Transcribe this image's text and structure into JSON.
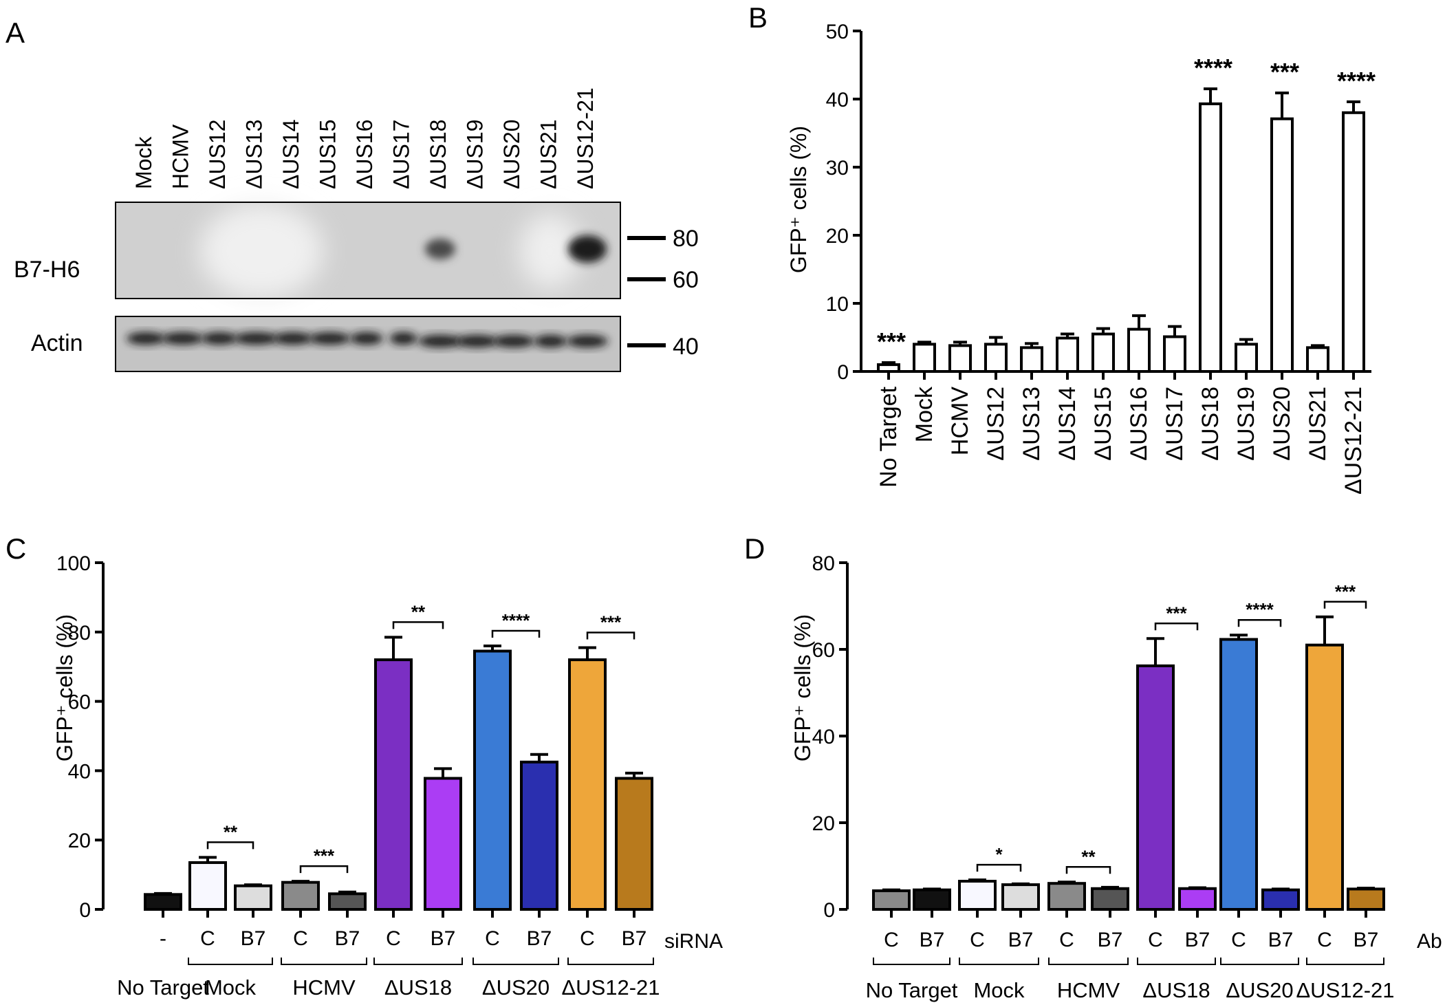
{
  "panels": {
    "A": {
      "label": "A",
      "lanes": [
        "Mock",
        "HCMV",
        "ΔUS12",
        "ΔUS13",
        "ΔUS14",
        "ΔUS15",
        "ΔUS16",
        "ΔUS17",
        "ΔUS18",
        "ΔUS19",
        "ΔUS20",
        "ΔUS21",
        "ΔUS12-21"
      ],
      "blots": [
        {
          "name": "B7-H6",
          "markers": [
            "80",
            "60"
          ]
        },
        {
          "name": "Actin",
          "markers": [
            "40"
          ]
        }
      ],
      "b7h6_band_lanes": [
        "ΔUS18",
        "ΔUS12-21"
      ]
    },
    "B": {
      "label": "B"
    },
    "C": {
      "label": "C",
      "treatment_label": "siRNA"
    },
    "D": {
      "label": "D",
      "treatment_label": "Ab"
    }
  },
  "chart_data": [
    {
      "panel": "B",
      "type": "bar",
      "ylabel": "GFP⁺ cells (%)",
      "ylim": [
        0,
        50
      ],
      "yticks": [
        0,
        10,
        20,
        30,
        40,
        50
      ],
      "categories": [
        "No Target",
        "Mock",
        "HCMV",
        "ΔUS12",
        "ΔUS13",
        "ΔUS14",
        "ΔUS15",
        "ΔUS16",
        "ΔUS17",
        "ΔUS18",
        "ΔUS19",
        "ΔUS20",
        "ΔUS21",
        "ΔUS12-21"
      ],
      "values": [
        1.0,
        4.0,
        3.8,
        4.0,
        3.5,
        4.9,
        5.5,
        6.2,
        5.1,
        39.3,
        4.0,
        37.1,
        3.5,
        38.0
      ],
      "errors": [
        0.3,
        0.3,
        0.5,
        1.0,
        0.6,
        0.6,
        0.8,
        2.0,
        1.5,
        2.2,
        0.7,
        3.8,
        0.3,
        1.6
      ],
      "fill": "#ffffff",
      "significance": [
        {
          "index": 0,
          "label": "***"
        },
        {
          "index": 9,
          "label": "****"
        },
        {
          "index": 11,
          "label": "***"
        },
        {
          "index": 13,
          "label": "****"
        }
      ]
    },
    {
      "panel": "C",
      "type": "bar",
      "ylabel": "GFP⁺ cells (%)",
      "ylim": [
        0,
        100
      ],
      "yticks": [
        0,
        20,
        40,
        60,
        80,
        100
      ],
      "bar_labels": [
        "-",
        "C",
        "B7",
        "C",
        "B7",
        "C",
        "B7",
        "C",
        "B7",
        "C",
        "B7"
      ],
      "values": [
        4.3,
        13.5,
        6.8,
        7.8,
        4.5,
        72.0,
        37.8,
        74.5,
        42.5,
        72.0,
        37.8
      ],
      "errors": [
        0.3,
        1.5,
        0.3,
        0.3,
        0.5,
        6.5,
        2.8,
        1.5,
        2.2,
        3.5,
        1.5
      ],
      "colors": [
        "#111111",
        "#f8f8ff",
        "#dddddd",
        "#8a8a8a",
        "#555555",
        "#7b2fc3",
        "#ab3df4",
        "#3a7bd5",
        "#2a2faf",
        "#eea63a",
        "#b87a1d"
      ],
      "groups": [
        {
          "name": "No Target",
          "bars": [
            0
          ]
        },
        {
          "name": "Mock",
          "bars": [
            1,
            2
          ]
        },
        {
          "name": "HCMV",
          "bars": [
            3,
            4
          ]
        },
        {
          "name": "ΔUS18",
          "bars": [
            5,
            6
          ]
        },
        {
          "name": "ΔUS20",
          "bars": [
            7,
            8
          ]
        },
        {
          "name": "ΔUS12-21",
          "bars": [
            9,
            10
          ]
        }
      ],
      "significance": [
        {
          "bars": [
            1,
            2
          ],
          "label": "**"
        },
        {
          "bars": [
            3,
            4
          ],
          "label": "***"
        },
        {
          "bars": [
            5,
            6
          ],
          "label": "**"
        },
        {
          "bars": [
            7,
            8
          ],
          "label": "****"
        },
        {
          "bars": [
            9,
            10
          ],
          "label": "***"
        }
      ]
    },
    {
      "panel": "D",
      "type": "bar",
      "ylabel": "GFP⁺ cells (%)",
      "ylim": [
        0,
        80
      ],
      "yticks": [
        0,
        20,
        40,
        60,
        80
      ],
      "bar_labels": [
        "C",
        "B7",
        "C",
        "B7",
        "C",
        "B7",
        "C",
        "B7",
        "C",
        "B7",
        "C",
        "B7"
      ],
      "values": [
        4.3,
        4.5,
        6.5,
        5.7,
        6.0,
        4.8,
        56.2,
        4.8,
        62.3,
        4.5,
        61.0,
        4.7
      ],
      "errors": [
        0.2,
        0.2,
        0.3,
        0.2,
        0.3,
        0.3,
        6.3,
        0.2,
        1.0,
        0.2,
        6.5,
        0.2
      ],
      "colors": [
        "#8a8a8a",
        "#111111",
        "#f8f8ff",
        "#dddddd",
        "#8a8a8a",
        "#555555",
        "#7b2fc3",
        "#ab3df4",
        "#3a7bd5",
        "#2a2faf",
        "#eea63a",
        "#b87a1d"
      ],
      "groups": [
        {
          "name": "No Target",
          "bars": [
            0,
            1
          ]
        },
        {
          "name": "Mock",
          "bars": [
            2,
            3
          ]
        },
        {
          "name": "HCMV",
          "bars": [
            4,
            5
          ]
        },
        {
          "name": "ΔUS18",
          "bars": [
            6,
            7
          ]
        },
        {
          "name": "ΔUS20",
          "bars": [
            8,
            9
          ]
        },
        {
          "name": "ΔUS12-21",
          "bars": [
            10,
            11
          ]
        }
      ],
      "significance": [
        {
          "bars": [
            2,
            3
          ],
          "label": "*"
        },
        {
          "bars": [
            4,
            5
          ],
          "label": "**"
        },
        {
          "bars": [
            6,
            7
          ],
          "label": "***"
        },
        {
          "bars": [
            8,
            9
          ],
          "label": "****"
        },
        {
          "bars": [
            10,
            11
          ],
          "label": "***"
        }
      ]
    }
  ]
}
